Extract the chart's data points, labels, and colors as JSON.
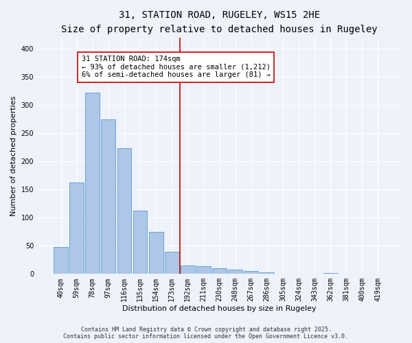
{
  "title": "31, STATION ROAD, RUGELEY, WS15 2HE",
  "subtitle": "Size of property relative to detached houses in Rugeley",
  "xlabel": "Distribution of detached houses by size in Rugeley",
  "ylabel": "Number of detached properties",
  "footer_line1": "Contains HM Land Registry data © Crown copyright and database right 2025.",
  "footer_line2": "Contains public sector information licensed under the Open Government Licence v3.0.",
  "categories": [
    "40sqm",
    "59sqm",
    "78sqm",
    "97sqm",
    "116sqm",
    "135sqm",
    "154sqm",
    "173sqm",
    "192sqm",
    "211sqm",
    "230sqm",
    "248sqm",
    "267sqm",
    "286sqm",
    "305sqm",
    "324sqm",
    "343sqm",
    "362sqm",
    "381sqm",
    "400sqm",
    "419sqm"
  ],
  "values": [
    48,
    162,
    322,
    275,
    224,
    112,
    75,
    40,
    15,
    14,
    10,
    8,
    5,
    3,
    0,
    1,
    0,
    2,
    0,
    1,
    1
  ],
  "bar_color": "#aec6e8",
  "bar_edge_color": "#5b9bd5",
  "vline_x_idx": 7.5,
  "vline_color": "#cc0000",
  "annotation_text": "31 STATION ROAD: 174sqm\n← 93% of detached houses are smaller (1,212)\n6% of semi-detached houses are larger (81) →",
  "annotation_box_color": "#ffffff",
  "annotation_box_edge": "#cc0000",
  "ylim": [
    0,
    420
  ],
  "yticks": [
    0,
    50,
    100,
    150,
    200,
    250,
    300,
    350,
    400
  ],
  "bg_color": "#eef2fa",
  "grid_color": "#ffffff",
  "title_fontsize": 10,
  "subtitle_fontsize": 9,
  "label_fontsize": 8,
  "tick_fontsize": 7,
  "footer_fontsize": 6,
  "annot_fontsize": 7.5
}
